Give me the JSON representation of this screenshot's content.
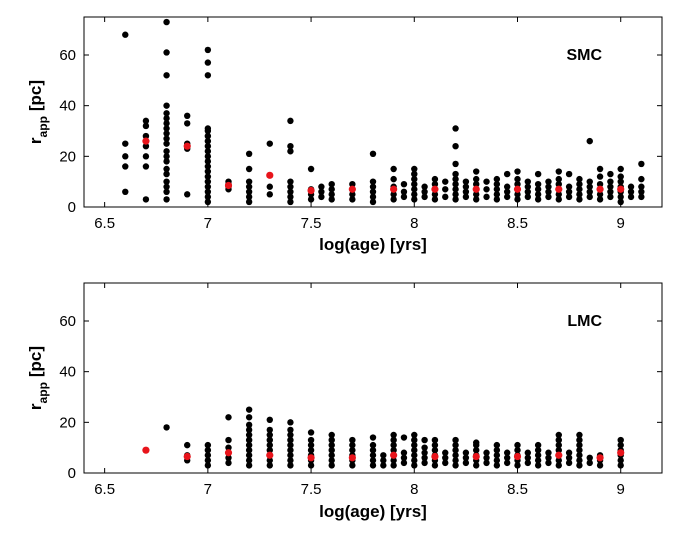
{
  "chart_data": [
    {
      "type": "scatter",
      "panel_label": "SMC",
      "xlabel": "log(age) [yrs]",
      "ylabel": {
        "main": "r",
        "sub": "app",
        "unit": "[pc]"
      },
      "xlim": [
        6.4,
        9.2
      ],
      "ylim": [
        0,
        75
      ],
      "xticks": [
        6.5,
        7,
        7.5,
        8,
        8.5,
        9
      ],
      "yticks": [
        0,
        20,
        40,
        60
      ],
      "series": [
        {
          "color": "#000000",
          "columns": [
            {
              "x": 6.6,
              "y": [
                6,
                16,
                20,
                25,
                68
              ]
            },
            {
              "x": 6.7,
              "y": [
                3,
                16,
                20,
                24,
                28,
                32,
                34
              ]
            },
            {
              "x": 6.8,
              "y": [
                3,
                6,
                8,
                10,
                13,
                15,
                18,
                20,
                22,
                25,
                27,
                29,
                31,
                33,
                35,
                37,
                40,
                52,
                61,
                73
              ]
            },
            {
              "x": 6.9,
              "y": [
                5,
                23,
                25,
                33,
                36
              ]
            },
            {
              "x": 7.0,
              "y": [
                2,
                4,
                6,
                8,
                10,
                12,
                14,
                16,
                18,
                20,
                22,
                24,
                26,
                28,
                30,
                31,
                52,
                57,
                62
              ]
            },
            {
              "x": 7.1,
              "y": [
                7,
                8,
                9,
                10
              ]
            },
            {
              "x": 7.2,
              "y": [
                2,
                4,
                6,
                8,
                10,
                15,
                21
              ]
            },
            {
              "x": 7.3,
              "y": [
                5,
                8,
                25
              ]
            },
            {
              "x": 7.4,
              "y": [
                2,
                4,
                6,
                8,
                10,
                22,
                24,
                34
              ]
            },
            {
              "x": 7.5,
              "y": [
                3,
                5,
                7,
                15
              ]
            },
            {
              "x": 7.55,
              "y": [
                4,
                6,
                8
              ]
            },
            {
              "x": 7.6,
              "y": [
                3,
                5,
                7,
                9
              ]
            },
            {
              "x": 7.7,
              "y": [
                3,
                5,
                7,
                9
              ]
            },
            {
              "x": 7.8,
              "y": [
                2,
                4,
                6,
                8,
                10,
                21
              ]
            },
            {
              "x": 7.9,
              "y": [
                3,
                5,
                8,
                11,
                15
              ]
            },
            {
              "x": 7.95,
              "y": [
                4,
                6,
                9
              ]
            },
            {
              "x": 8.0,
              "y": [
                3,
                5,
                7,
                9,
                11,
                13,
                15
              ]
            },
            {
              "x": 8.05,
              "y": [
                4,
                6,
                8
              ]
            },
            {
              "x": 8.1,
              "y": [
                3,
                5,
                7,
                9,
                11
              ]
            },
            {
              "x": 8.15,
              "y": [
                4,
                7,
                10
              ]
            },
            {
              "x": 8.2,
              "y": [
                3,
                5,
                7,
                9,
                11,
                13,
                17,
                24,
                31
              ]
            },
            {
              "x": 8.25,
              "y": [
                4,
                6,
                8,
                10
              ]
            },
            {
              "x": 8.3,
              "y": [
                3,
                5,
                7,
                9,
                11,
                14
              ]
            },
            {
              "x": 8.35,
              "y": [
                4,
                7,
                10
              ]
            },
            {
              "x": 8.4,
              "y": [
                3,
                5,
                7,
                9,
                11
              ]
            },
            {
              "x": 8.45,
              "y": [
                4,
                6,
                8,
                13
              ]
            },
            {
              "x": 8.5,
              "y": [
                3,
                5,
                7,
                9,
                11,
                14
              ]
            },
            {
              "x": 8.55,
              "y": [
                4,
                6,
                8,
                10
              ]
            },
            {
              "x": 8.6,
              "y": [
                3,
                5,
                7,
                9,
                13
              ]
            },
            {
              "x": 8.65,
              "y": [
                4,
                6,
                8,
                10
              ]
            },
            {
              "x": 8.7,
              "y": [
                3,
                5,
                7,
                9,
                11,
                14
              ]
            },
            {
              "x": 8.75,
              "y": [
                4,
                6,
                8,
                13
              ]
            },
            {
              "x": 8.8,
              "y": [
                3,
                5,
                7,
                9,
                11
              ]
            },
            {
              "x": 8.85,
              "y": [
                4,
                6,
                8,
                10,
                26
              ]
            },
            {
              "x": 8.9,
              "y": [
                3,
                5,
                7,
                9,
                12,
                15
              ]
            },
            {
              "x": 8.95,
              "y": [
                4,
                6,
                8,
                10,
                13
              ]
            },
            {
              "x": 9.0,
              "y": [
                2,
                4,
                6,
                8,
                10,
                12,
                15
              ]
            },
            {
              "x": 9.05,
              "y": [
                4,
                6,
                8
              ]
            },
            {
              "x": 9.1,
              "y": [
                4,
                6,
                8,
                11,
                17
              ]
            }
          ]
        },
        {
          "color": "#e8141b",
          "points": [
            [
              6.7,
              26
            ],
            [
              6.9,
              24
            ],
            [
              7.1,
              8.5
            ],
            [
              7.3,
              12.5
            ],
            [
              7.5,
              6.5
            ],
            [
              7.7,
              7
            ],
            [
              7.9,
              7
            ],
            [
              8.1,
              7
            ],
            [
              8.3,
              7
            ],
            [
              8.5,
              7
            ],
            [
              8.7,
              7
            ],
            [
              8.9,
              7
            ],
            [
              9.0,
              7
            ]
          ]
        }
      ]
    },
    {
      "type": "scatter",
      "panel_label": "LMC",
      "xlabel": "log(age) [yrs]",
      "ylabel": {
        "main": "r",
        "sub": "app",
        "unit": "[pc]"
      },
      "xlim": [
        6.4,
        9.2
      ],
      "ylim": [
        0,
        75
      ],
      "xticks": [
        6.5,
        7,
        7.5,
        8,
        8.5,
        9
      ],
      "yticks": [
        0,
        20,
        40,
        60
      ],
      "series": [
        {
          "color": "#000000",
          "columns": [
            {
              "x": 6.8,
              "y": [
                18
              ]
            },
            {
              "x": 6.9,
              "y": [
                5,
                7,
                11
              ]
            },
            {
              "x": 7.0,
              "y": [
                3,
                5,
                7,
                9,
                11
              ]
            },
            {
              "x": 7.1,
              "y": [
                4,
                6,
                8,
                10,
                13,
                22
              ]
            },
            {
              "x": 7.2,
              "y": [
                3,
                5,
                7,
                9,
                11,
                13,
                15,
                17,
                19,
                22,
                25
              ]
            },
            {
              "x": 7.3,
              "y": [
                3,
                5,
                7,
                9,
                11,
                13,
                15,
                17,
                21
              ]
            },
            {
              "x": 7.4,
              "y": [
                3,
                5,
                7,
                9,
                11,
                13,
                15,
                17,
                20
              ]
            },
            {
              "x": 7.5,
              "y": [
                3,
                5,
                7,
                9,
                11,
                13,
                16
              ]
            },
            {
              "x": 7.6,
              "y": [
                3,
                5,
                7,
                9,
                11,
                13,
                15
              ]
            },
            {
              "x": 7.7,
              "y": [
                3,
                5,
                7,
                9,
                11,
                13
              ]
            },
            {
              "x": 7.8,
              "y": [
                3,
                5,
                7,
                9,
                11,
                14
              ]
            },
            {
              "x": 7.85,
              "y": [
                3,
                5,
                7
              ]
            },
            {
              "x": 7.9,
              "y": [
                3,
                5,
                7,
                9,
                11,
                13,
                15
              ]
            },
            {
              "x": 7.95,
              "y": [
                4,
                6,
                8,
                14
              ]
            },
            {
              "x": 8.0,
              "y": [
                3,
                5,
                7,
                9,
                11,
                13,
                15
              ]
            },
            {
              "x": 8.05,
              "y": [
                4,
                6,
                8,
                10,
                13
              ]
            },
            {
              "x": 8.1,
              "y": [
                3,
                5,
                7,
                9,
                11,
                13
              ]
            },
            {
              "x": 8.15,
              "y": [
                4,
                6,
                8
              ]
            },
            {
              "x": 8.2,
              "y": [
                3,
                5,
                7,
                9,
                11,
                13
              ]
            },
            {
              "x": 8.25,
              "y": [
                4,
                6,
                8
              ]
            },
            {
              "x": 8.3,
              "y": [
                3,
                5,
                7,
                9,
                11,
                12
              ]
            },
            {
              "x": 8.35,
              "y": [
                4,
                6,
                8
              ]
            },
            {
              "x": 8.4,
              "y": [
                3,
                5,
                7,
                9,
                11
              ]
            },
            {
              "x": 8.45,
              "y": [
                4,
                6,
                8
              ]
            },
            {
              "x": 8.5,
              "y": [
                3,
                5,
                7,
                9,
                11
              ]
            },
            {
              "x": 8.55,
              "y": [
                4,
                6,
                8
              ]
            },
            {
              "x": 8.6,
              "y": [
                3,
                5,
                7,
                9,
                11
              ]
            },
            {
              "x": 8.65,
              "y": [
                4,
                6,
                8
              ]
            },
            {
              "x": 8.7,
              "y": [
                3,
                5,
                7,
                9,
                11,
                13,
                15
              ]
            },
            {
              "x": 8.75,
              "y": [
                4,
                6,
                8
              ]
            },
            {
              "x": 8.8,
              "y": [
                3,
                5,
                7,
                9,
                11,
                13,
                15
              ]
            },
            {
              "x": 8.85,
              "y": [
                4,
                6
              ]
            },
            {
              "x": 8.9,
              "y": [
                3,
                5,
                7
              ]
            },
            {
              "x": 9.0,
              "y": [
                3,
                5,
                7,
                9,
                11,
                13
              ]
            }
          ]
        },
        {
          "color": "#e8141b",
          "points": [
            [
              6.7,
              9
            ],
            [
              6.9,
              6.5
            ],
            [
              7.1,
              8
            ],
            [
              7.3,
              7
            ],
            [
              7.5,
              6
            ],
            [
              7.7,
              6
            ],
            [
              7.9,
              7
            ],
            [
              8.1,
              6.5
            ],
            [
              8.3,
              6.5
            ],
            [
              8.5,
              6.5
            ],
            [
              8.7,
              7
            ],
            [
              8.9,
              6
            ],
            [
              9.0,
              8
            ]
          ]
        }
      ]
    }
  ]
}
